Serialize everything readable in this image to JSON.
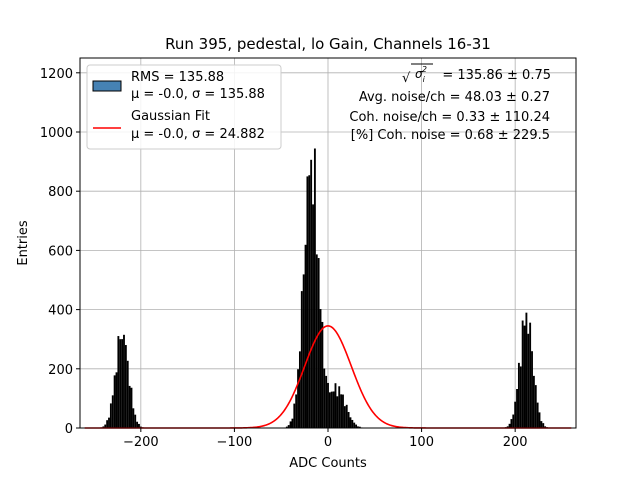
{
  "chart_data": {
    "type": "bar",
    "title": "Run 395, pedestal, lo Gain, Channels 16-31",
    "xlabel": "ADC Counts",
    "ylabel": "Entries",
    "xlim": [
      -265,
      265
    ],
    "ylim": [
      0,
      1250
    ],
    "xticks": [
      -200,
      -100,
      0,
      100,
      200
    ],
    "yticks": [
      0,
      200,
      400,
      600,
      800,
      1000,
      1200
    ],
    "grid": true,
    "legend_location": "upper-left",
    "colors": {
      "histogram_fill": "#000000",
      "legend_patch": "#4682b4",
      "fit_line": "#ff0000",
      "grid": "#b0b0b0"
    },
    "histogram": {
      "name_lines": [
        "RMS = 135.88",
        "μ = -0.0, σ = 135.88"
      ],
      "bin_width": 2,
      "peaks": [
        {
          "center": -220,
          "height": 320,
          "sigma": 7
        },
        {
          "center": -18,
          "height": 890,
          "sigma": 8
        },
        {
          "center": 10,
          "height": 130,
          "sigma": 9
        },
        {
          "center": 212,
          "height": 375,
          "sigma": 7
        }
      ]
    },
    "fit": {
      "name_lines": [
        "Gaussian Fit",
        "μ = -0.0, σ = 24.882"
      ],
      "mu": 0.0,
      "sigma": 24.882,
      "amplitude": 345
    },
    "annotations": {
      "sigma_sum_value": "= 135.86 ± 0.75",
      "avg_noise": "Avg. noise/ch = 48.03 ± 0.27",
      "coh_noise": "Coh. noise/ch = 0.33 ± 110.24",
      "pct_coh_noise": "[%] Coh. noise = 0.68 ± 229.5"
    }
  }
}
